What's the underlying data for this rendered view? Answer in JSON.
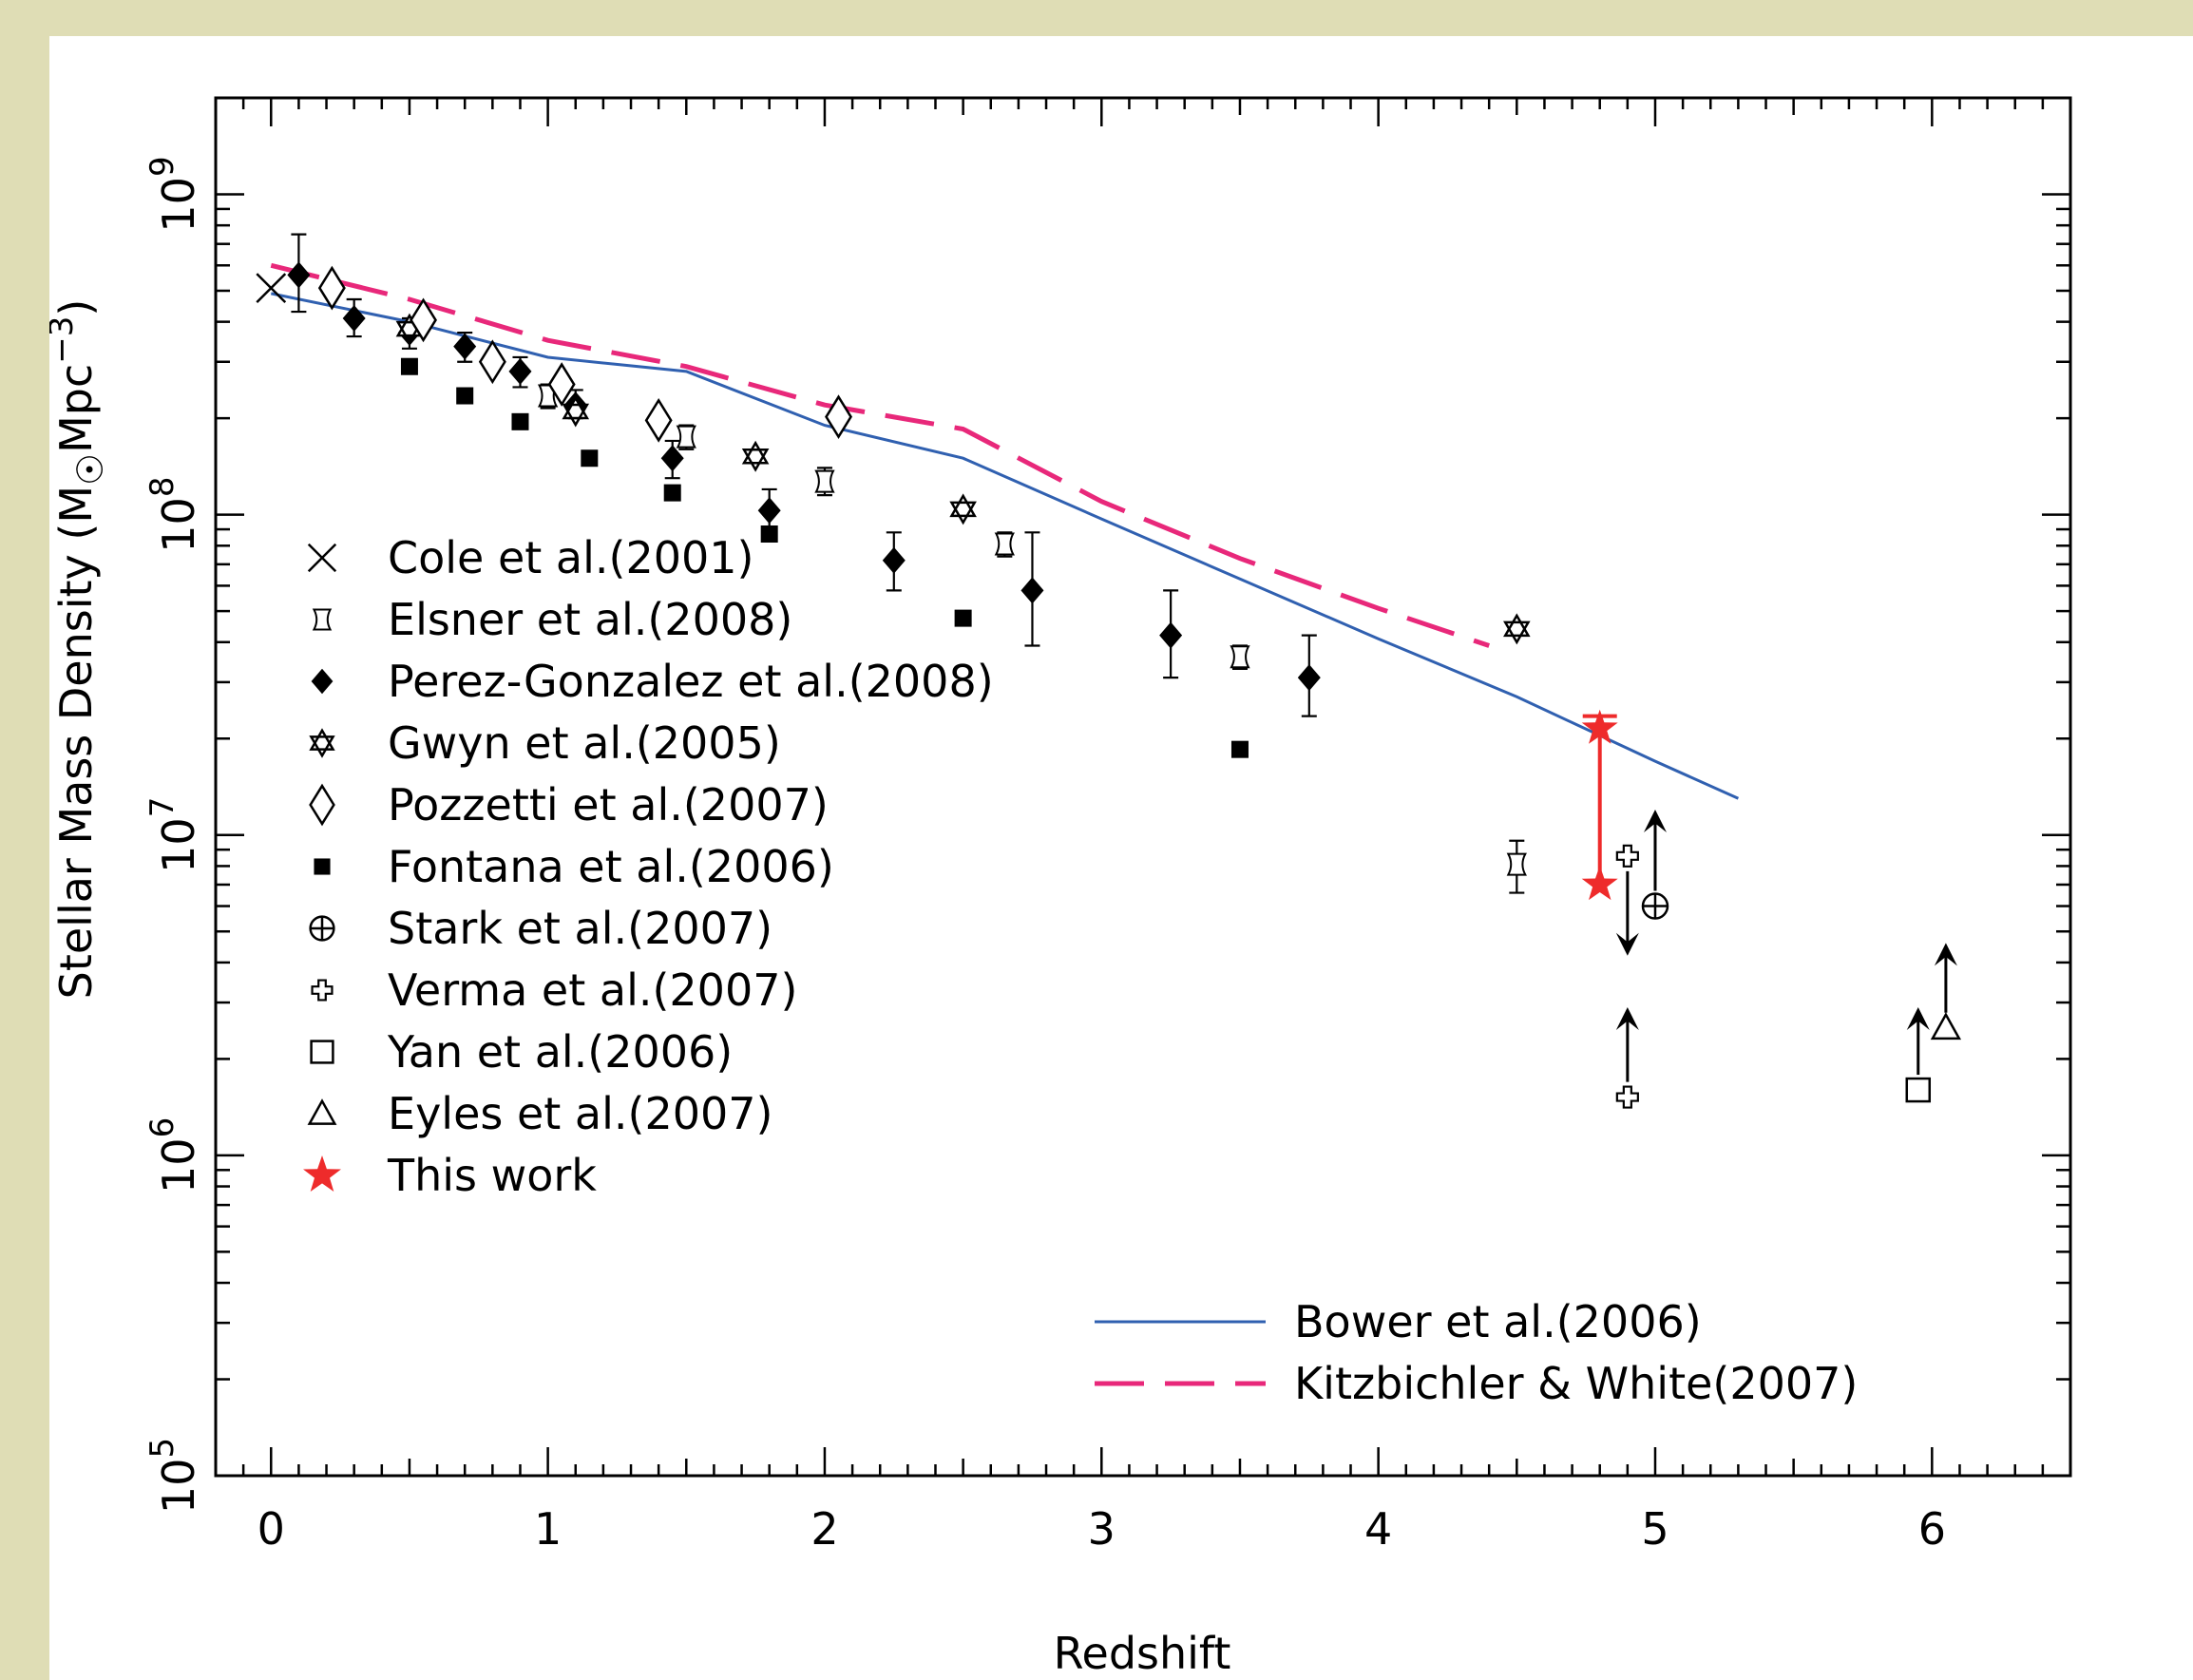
{
  "chart_data": {
    "type": "scatter",
    "title": "",
    "xlabel": "Redshift",
    "ylabel_main": "Stellar Mass Density (M",
    "ylabel_unit": "Mpc",
    "ylabel_exp": "−3",
    "ylabel_close": ")",
    "yscale": "log",
    "xlim": [
      -0.2,
      6.5
    ],
    "ylim": [
      100000,
      2000000000
    ],
    "grid": false,
    "legend_position": "bottom-left",
    "x_ticks": [
      {
        "value": 0,
        "label": "0"
      },
      {
        "value": 1,
        "label": "1"
      },
      {
        "value": 2,
        "label": "2"
      },
      {
        "value": 3,
        "label": "3"
      },
      {
        "value": 4,
        "label": "4"
      },
      {
        "value": 5,
        "label": "5"
      },
      {
        "value": 6,
        "label": "6"
      }
    ],
    "y_ticks": [
      {
        "value": 100000,
        "base": "10",
        "exp": "5"
      },
      {
        "value": 1000000,
        "base": "10",
        "exp": "6"
      },
      {
        "value": 10000000,
        "base": "10",
        "exp": "7"
      },
      {
        "value": 100000000,
        "base": "10",
        "exp": "8"
      },
      {
        "value": 1000000000,
        "base": "10",
        "exp": "9"
      }
    ],
    "series": [
      {
        "name": "Cole et al.(2001)",
        "marker": "cross",
        "color": "#000000",
        "points": [
          {
            "x": 0.0,
            "y": 510000000.0
          }
        ]
      },
      {
        "name": "Elsner et al.(2008)",
        "marker": "elsner",
        "color": "#000000",
        "points": [
          {
            "x": 1.0,
            "y": 235000000.0,
            "ylo": 215000000.0,
            "yhi": 255000000.0
          },
          {
            "x": 1.5,
            "y": 175000000.0,
            "ylo": 160000000.0,
            "yhi": 190000000.0
          },
          {
            "x": 2.0,
            "y": 127000000.0,
            "ylo": 115000000.0,
            "yhi": 140000000.0
          },
          {
            "x": 2.65,
            "y": 81000000.0,
            "ylo": 74000000.0,
            "yhi": 88000000.0
          },
          {
            "x": 3.5,
            "y": 36000000.0,
            "ylo": 33000000.0,
            "yhi": 39000000.0
          },
          {
            "x": 4.5,
            "y": 8100000.0,
            "ylo": 6600000.0,
            "yhi": 9600000.0
          }
        ]
      },
      {
        "name": "Perez-Gonzalez et al.(2008)",
        "marker": "diamond-filled",
        "color": "#000000",
        "points": [
          {
            "x": 0.1,
            "y": 560000000.0,
            "ylo": 430000000.0,
            "yhi": 750000000.0
          },
          {
            "x": 0.3,
            "y": 410000000.0,
            "ylo": 360000000.0,
            "yhi": 470000000.0
          },
          {
            "x": 0.5,
            "y": 370000000.0,
            "ylo": 330000000.0,
            "yhi": 410000000.0
          },
          {
            "x": 0.7,
            "y": 335000000.0,
            "ylo": 300000000.0,
            "yhi": 370000000.0
          },
          {
            "x": 0.9,
            "y": 280000000.0,
            "ylo": 250000000.0,
            "yhi": 310000000.0
          },
          {
            "x": 1.1,
            "y": 220000000.0,
            "ylo": 200000000.0,
            "yhi": 245000000.0
          },
          {
            "x": 1.45,
            "y": 150000000.0,
            "ylo": 130000000.0,
            "yhi": 170000000.0
          },
          {
            "x": 1.8,
            "y": 103000000.0,
            "ylo": 89000000.0,
            "yhi": 120000000.0
          },
          {
            "x": 2.25,
            "y": 72000000.0,
            "ylo": 58000000.0,
            "yhi": 88000000.0
          },
          {
            "x": 2.75,
            "y": 58000000.0,
            "ylo": 39000000.0,
            "yhi": 88000000.0
          },
          {
            "x": 3.25,
            "y": 42000000.0,
            "ylo": 31000000.0,
            "yhi": 58000000.0
          },
          {
            "x": 3.75,
            "y": 31000000.0,
            "ylo": 23500000.0,
            "yhi": 42000000.0
          }
        ]
      },
      {
        "name": "Gwyn et al.(2005)",
        "marker": "star6",
        "color": "#000000",
        "points": [
          {
            "x": 0.5,
            "y": 380000000.0
          },
          {
            "x": 1.1,
            "y": 210000000.0
          },
          {
            "x": 1.75,
            "y": 152000000.0
          },
          {
            "x": 2.5,
            "y": 104000000.0
          },
          {
            "x": 4.5,
            "y": 44000000.0
          }
        ]
      },
      {
        "name": "Pozzetti et al.(2007)",
        "marker": "diamond-open",
        "color": "#000000",
        "points": [
          {
            "x": 0.22,
            "y": 510000000.0
          },
          {
            "x": 0.55,
            "y": 405000000.0
          },
          {
            "x": 0.8,
            "y": 300000000.0
          },
          {
            "x": 1.05,
            "y": 255000000.0
          },
          {
            "x": 1.4,
            "y": 197000000.0
          },
          {
            "x": 2.05,
            "y": 202000000.0
          }
        ]
      },
      {
        "name": "Fontana et al.(2006)",
        "marker": "square-filled",
        "color": "#000000",
        "points": [
          {
            "x": 0.5,
            "y": 290000000.0
          },
          {
            "x": 0.7,
            "y": 235000000.0
          },
          {
            "x": 0.9,
            "y": 195000000.0
          },
          {
            "x": 1.15,
            "y": 150000000.0
          },
          {
            "x": 1.45,
            "y": 117000000.0
          },
          {
            "x": 1.8,
            "y": 87000000.0
          },
          {
            "x": 2.5,
            "y": 47500000.0
          },
          {
            "x": 3.5,
            "y": 18500000.0
          }
        ]
      },
      {
        "name": "Stark et al.(2007)",
        "marker": "circle-plus",
        "color": "#000000",
        "points": [
          {
            "x": 5.0,
            "y": 6000000.0,
            "arrow_to": 12000000.0
          }
        ]
      },
      {
        "name": "Verma et al.(2007)",
        "marker": "cross-open",
        "color": "#000000",
        "points": [
          {
            "x": 4.9,
            "y": 8600000.0,
            "arrow_to": 4200000.0
          },
          {
            "x": 4.9,
            "y": 1520000.0,
            "arrow_to": 2900000.0
          }
        ]
      },
      {
        "name": "Yan et al.(2006)",
        "marker": "square-open",
        "color": "#000000",
        "points": [
          {
            "x": 5.95,
            "y": 1600000.0,
            "arrow_to": 2900000.0
          }
        ]
      },
      {
        "name": "Eyles et al.(2007)",
        "marker": "triangle-open",
        "color": "#000000",
        "points": [
          {
            "x": 6.05,
            "y": 2500000.0,
            "arrow_to": 4600000.0
          }
        ]
      },
      {
        "name": "This work",
        "marker": "star5",
        "color": "#ee2b2b",
        "points": [
          {
            "x": 4.8,
            "y": 7000000.0
          },
          {
            "x": 4.8,
            "y": 21500000.0
          }
        ],
        "range_bar": {
          "x": 4.8,
          "ylo": 7000000.0,
          "yhi": 23500000.0
        }
      }
    ],
    "models": [
      {
        "name": "Bower et al.(2006)",
        "style": "solid",
        "color": "#3060b0",
        "x": [
          0.0,
          0.5,
          1.0,
          1.5,
          2.0,
          2.5,
          3.0,
          3.5,
          4.0,
          4.5,
          5.0,
          5.3
        ],
        "y": [
          490000000.0,
          400000000.0,
          310000000.0,
          280000000.0,
          190000000.0,
          150000000.0,
          97000000.0,
          63000000.0,
          41000000.0,
          27000000.0,
          17000000.0,
          13000000.0
        ]
      },
      {
        "name": "Kitzbichler & White(2007)",
        "style": "dashed",
        "color": "#e8287a",
        "x": [
          0.0,
          0.5,
          1.0,
          1.5,
          2.0,
          2.5,
          3.0,
          3.5,
          4.0,
          4.4
        ],
        "y": [
          600000000.0,
          470000000.0,
          350000000.0,
          290000000.0,
          220000000.0,
          185000000.0,
          110000000.0,
          73000000.0,
          51000000.0,
          39000000.0
        ]
      }
    ]
  }
}
